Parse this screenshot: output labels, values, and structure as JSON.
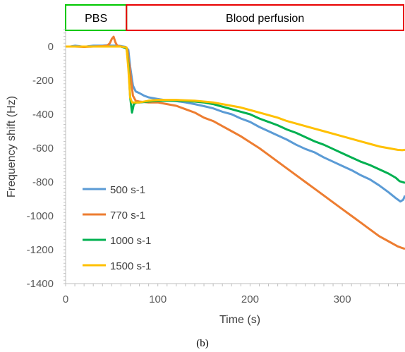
{
  "chart_data": {
    "type": "line",
    "xlabel": "Time (s)",
    "ylabel": "Frequency shift (Hz)",
    "xlim": [
      0,
      368
    ],
    "ylim": [
      -1400,
      100
    ],
    "xticks": [
      0,
      100,
      200,
      300
    ],
    "yticks": [
      0,
      -200,
      -400,
      -600,
      -800,
      -1000,
      -1200,
      -1400
    ],
    "grid": false,
    "legend_position": "bottom-left",
    "caption": "(b)",
    "phases": [
      {
        "label": "PBS",
        "x_start": 0,
        "x_end": 66,
        "color": "#00c800"
      },
      {
        "label": "Blood perfusion",
        "x_start": 66,
        "x_end": 368,
        "color": "#e80000"
      }
    ],
    "series": [
      {
        "name": "500 s-1",
        "color": "#5b9bd5",
        "points": [
          [
            0,
            0
          ],
          [
            5,
            0
          ],
          [
            10,
            5
          ],
          [
            15,
            2
          ],
          [
            20,
            -2
          ],
          [
            25,
            2
          ],
          [
            30,
            5
          ],
          [
            35,
            5
          ],
          [
            40,
            5
          ],
          [
            45,
            8
          ],
          [
            50,
            5
          ],
          [
            55,
            6
          ],
          [
            60,
            3
          ],
          [
            65,
            -2
          ],
          [
            68,
            -20
          ],
          [
            70,
            -120
          ],
          [
            73,
            -230
          ],
          [
            76,
            -265
          ],
          [
            80,
            -275
          ],
          [
            85,
            -290
          ],
          [
            90,
            -300
          ],
          [
            100,
            -310
          ],
          [
            110,
            -318
          ],
          [
            120,
            -322
          ],
          [
            130,
            -330
          ],
          [
            140,
            -340
          ],
          [
            150,
            -352
          ],
          [
            160,
            -365
          ],
          [
            170,
            -385
          ],
          [
            180,
            -400
          ],
          [
            190,
            -425
          ],
          [
            200,
            -445
          ],
          [
            210,
            -475
          ],
          [
            220,
            -500
          ],
          [
            230,
            -525
          ],
          [
            240,
            -550
          ],
          [
            250,
            -580
          ],
          [
            260,
            -605
          ],
          [
            270,
            -625
          ],
          [
            280,
            -655
          ],
          [
            290,
            -680
          ],
          [
            300,
            -705
          ],
          [
            310,
            -730
          ],
          [
            320,
            -760
          ],
          [
            330,
            -785
          ],
          [
            340,
            -820
          ],
          [
            350,
            -860
          ],
          [
            358,
            -895
          ],
          [
            363,
            -915
          ],
          [
            366,
            -905
          ],
          [
            368,
            -880
          ]
        ]
      },
      {
        "name": "770 s-1",
        "color": "#ed7d31",
        "points": [
          [
            0,
            0
          ],
          [
            10,
            0
          ],
          [
            20,
            -2
          ],
          [
            30,
            0
          ],
          [
            40,
            2
          ],
          [
            45,
            5
          ],
          [
            48,
            20
          ],
          [
            50,
            45
          ],
          [
            52,
            58
          ],
          [
            54,
            25
          ],
          [
            56,
            5
          ],
          [
            60,
            0
          ],
          [
            64,
            -5
          ],
          [
            67,
            -20
          ],
          [
            70,
            -150
          ],
          [
            73,
            -290
          ],
          [
            76,
            -320
          ],
          [
            80,
            -325
          ],
          [
            90,
            -330
          ],
          [
            100,
            -330
          ],
          [
            110,
            -340
          ],
          [
            120,
            -350
          ],
          [
            130,
            -370
          ],
          [
            140,
            -390
          ],
          [
            150,
            -420
          ],
          [
            160,
            -440
          ],
          [
            170,
            -470
          ],
          [
            180,
            -500
          ],
          [
            190,
            -530
          ],
          [
            200,
            -565
          ],
          [
            210,
            -600
          ],
          [
            220,
            -640
          ],
          [
            230,
            -680
          ],
          [
            240,
            -720
          ],
          [
            250,
            -760
          ],
          [
            260,
            -800
          ],
          [
            270,
            -840
          ],
          [
            280,
            -880
          ],
          [
            290,
            -920
          ],
          [
            300,
            -960
          ],
          [
            310,
            -1000
          ],
          [
            320,
            -1040
          ],
          [
            330,
            -1080
          ],
          [
            340,
            -1120
          ],
          [
            350,
            -1150
          ],
          [
            360,
            -1180
          ],
          [
            365,
            -1190
          ],
          [
            368,
            -1195
          ]
        ]
      },
      {
        "name": "1000 s-1",
        "color": "#00b050",
        "points": [
          [
            0,
            0
          ],
          [
            10,
            0
          ],
          [
            20,
            0
          ],
          [
            30,
            0
          ],
          [
            40,
            0
          ],
          [
            50,
            0
          ],
          [
            60,
            0
          ],
          [
            66,
            -10
          ],
          [
            68,
            -100
          ],
          [
            70,
            -300
          ],
          [
            72,
            -390
          ],
          [
            74,
            -340
          ],
          [
            77,
            -330
          ],
          [
            80,
            -330
          ],
          [
            90,
            -325
          ],
          [
            100,
            -320
          ],
          [
            110,
            -320
          ],
          [
            120,
            -320
          ],
          [
            130,
            -322
          ],
          [
            140,
            -325
          ],
          [
            150,
            -330
          ],
          [
            160,
            -340
          ],
          [
            170,
            -355
          ],
          [
            180,
            -370
          ],
          [
            190,
            -385
          ],
          [
            200,
            -400
          ],
          [
            210,
            -425
          ],
          [
            220,
            -445
          ],
          [
            230,
            -465
          ],
          [
            240,
            -490
          ],
          [
            250,
            -510
          ],
          [
            260,
            -535
          ],
          [
            270,
            -560
          ],
          [
            280,
            -580
          ],
          [
            290,
            -605
          ],
          [
            300,
            -630
          ],
          [
            310,
            -655
          ],
          [
            320,
            -680
          ],
          [
            330,
            -700
          ],
          [
            340,
            -725
          ],
          [
            350,
            -750
          ],
          [
            358,
            -775
          ],
          [
            362,
            -795
          ],
          [
            365,
            -800
          ],
          [
            368,
            -805
          ]
        ]
      },
      {
        "name": "1500 s-1",
        "color": "#ffc000",
        "points": [
          [
            0,
            0
          ],
          [
            10,
            0
          ],
          [
            20,
            0
          ],
          [
            30,
            0
          ],
          [
            40,
            0
          ],
          [
            50,
            0
          ],
          [
            60,
            0
          ],
          [
            66,
            -5
          ],
          [
            68,
            -130
          ],
          [
            70,
            -300
          ],
          [
            72,
            -330
          ],
          [
            80,
            -330
          ],
          [
            90,
            -320
          ],
          [
            100,
            -315
          ],
          [
            110,
            -315
          ],
          [
            120,
            -315
          ],
          [
            130,
            -318
          ],
          [
            140,
            -320
          ],
          [
            150,
            -325
          ],
          [
            160,
            -330
          ],
          [
            170,
            -340
          ],
          [
            180,
            -350
          ],
          [
            190,
            -360
          ],
          [
            200,
            -375
          ],
          [
            210,
            -390
          ],
          [
            220,
            -405
          ],
          [
            230,
            -420
          ],
          [
            240,
            -440
          ],
          [
            250,
            -455
          ],
          [
            260,
            -470
          ],
          [
            270,
            -485
          ],
          [
            280,
            -500
          ],
          [
            290,
            -515
          ],
          [
            300,
            -530
          ],
          [
            310,
            -545
          ],
          [
            320,
            -560
          ],
          [
            330,
            -575
          ],
          [
            340,
            -590
          ],
          [
            350,
            -600
          ],
          [
            360,
            -610
          ],
          [
            365,
            -612
          ],
          [
            368,
            -610
          ]
        ]
      }
    ]
  }
}
